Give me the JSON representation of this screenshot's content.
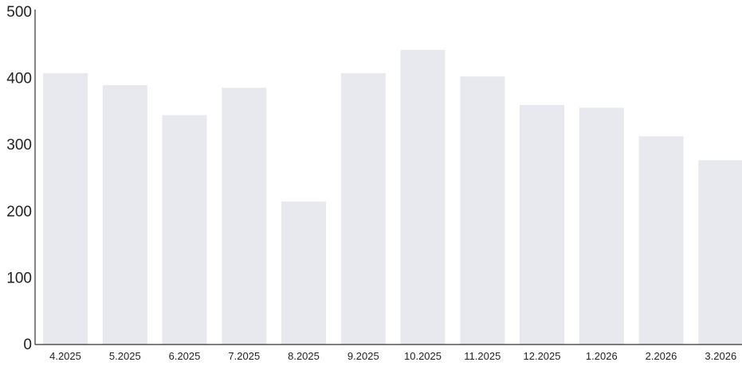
{
  "chart_data": {
    "type": "bar",
    "title": "",
    "xlabel": "",
    "ylabel": "",
    "categories": [
      "4.2025",
      "5.2025",
      "6.2025",
      "7.2025",
      "8.2025",
      "9.2025",
      "10.2025",
      "11.2025",
      "12.2025",
      "1.2026",
      "2.2026",
      "3.2026"
    ],
    "values": [
      408,
      390,
      345,
      386,
      215,
      408,
      443,
      403,
      360,
      356,
      313,
      277
    ],
    "ylim": [
      0,
      500
    ],
    "yticks": [
      0,
      100,
      200,
      300,
      400,
      500
    ],
    "grid": false,
    "legend": "none",
    "colors": {
      "bar": "#e7e9ef",
      "axis": "#333333",
      "text": "#222222"
    }
  }
}
